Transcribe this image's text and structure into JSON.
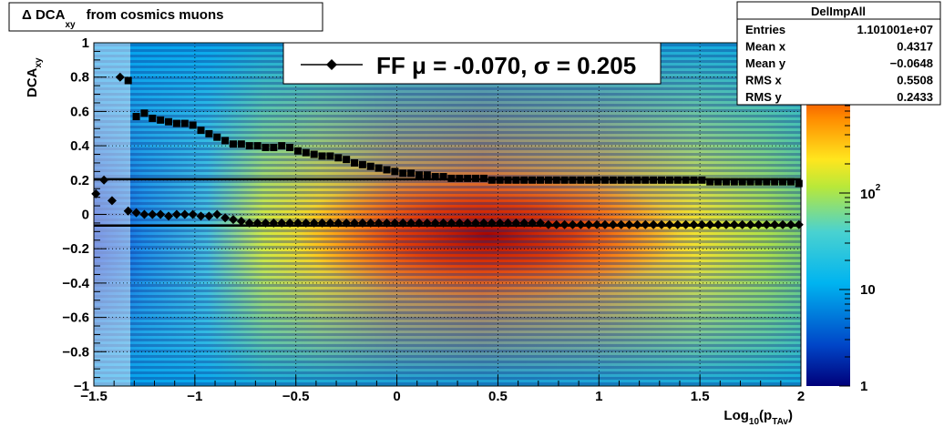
{
  "title": {
    "prefix": "Δ DCA",
    "sub": "xy",
    "suffix": "from cosmics muons"
  },
  "stats": {
    "name": "DelImpAll",
    "rows": [
      {
        "label": "Entries",
        "value": "1.101001e+07"
      },
      {
        "label": "Mean x",
        "value": "0.4317"
      },
      {
        "label": "Mean y",
        "value": "−0.0648"
      },
      {
        "label": "RMS x",
        "value": "0.5508"
      },
      {
        "label": "RMS y",
        "value": "0.2433"
      }
    ]
  },
  "legend": {
    "text": "FF μ = -0.070, σ =   0.205"
  },
  "chart_data": {
    "type": "heatmap",
    "xlabel": {
      "main": "Log",
      "sub1": "10",
      "mid": "(p",
      "sub2": "TAv",
      "end": ")"
    },
    "ylabel": {
      "main": "DCA",
      "sub": "xy"
    },
    "xlim": [
      -1.5,
      2
    ],
    "ylim": [
      -1,
      1
    ],
    "xticks": [
      "−1.5",
      "−1",
      "−0.5",
      "0",
      "0.5",
      "1",
      "1.5",
      "2"
    ],
    "yticks": [
      "−1",
      "−0.8",
      "−0.6",
      "−0.4",
      "−0.2",
      "0",
      "0.2",
      "0.4",
      "0.6",
      "0.8",
      "1"
    ],
    "grid": true,
    "colorbar": {
      "scale": "log",
      "ticks": [
        "1",
        "10",
        "10²"
      ]
    },
    "series": [
      {
        "marker": "square",
        "x": [
          -1.33,
          -1.29,
          -1.25,
          -1.21,
          -1.17,
          -1.13,
          -1.09,
          -1.05,
          -1.01,
          -0.97,
          -0.93,
          -0.89,
          -0.85,
          -0.81,
          -0.77,
          -0.73,
          -0.69,
          -0.65,
          -0.61,
          -0.57,
          -0.53,
          -0.49,
          -0.45,
          -0.41,
          -0.37,
          -0.33,
          -0.29,
          -0.25,
          -0.21,
          -0.17,
          -0.13,
          -0.09,
          -0.05,
          -0.01,
          0.03,
          0.07,
          0.11,
          0.15,
          0.19,
          0.23,
          0.27,
          0.31,
          0.35,
          0.39,
          0.43,
          0.47,
          0.51,
          0.55,
          0.59,
          0.63,
          0.67,
          0.71,
          0.75,
          0.79,
          0.83,
          0.87,
          0.91,
          0.95,
          0.99,
          1.03,
          1.07,
          1.11,
          1.15,
          1.19,
          1.23,
          1.27,
          1.31,
          1.35,
          1.39,
          1.43,
          1.47,
          1.51,
          1.55,
          1.59,
          1.63,
          1.67,
          1.71,
          1.75,
          1.79,
          1.83,
          1.87,
          1.91,
          1.95,
          1.99
        ],
        "y": [
          0.78,
          0.57,
          0.59,
          0.56,
          0.55,
          0.54,
          0.53,
          0.53,
          0.52,
          0.49,
          0.47,
          0.45,
          0.43,
          0.41,
          0.41,
          0.4,
          0.4,
          0.39,
          0.39,
          0.4,
          0.39,
          0.37,
          0.36,
          0.35,
          0.34,
          0.34,
          0.33,
          0.32,
          0.3,
          0.29,
          0.28,
          0.27,
          0.26,
          0.25,
          0.24,
          0.24,
          0.23,
          0.23,
          0.22,
          0.22,
          0.21,
          0.21,
          0.21,
          0.21,
          0.21,
          0.2,
          0.2,
          0.2,
          0.2,
          0.2,
          0.2,
          0.2,
          0.2,
          0.2,
          0.2,
          0.2,
          0.2,
          0.2,
          0.2,
          0.2,
          0.2,
          0.2,
          0.2,
          0.2,
          0.2,
          0.2,
          0.2,
          0.2,
          0.2,
          0.2,
          0.2,
          0.2,
          0.19,
          0.19,
          0.19,
          0.19,
          0.19,
          0.19,
          0.19,
          0.19,
          0.19,
          0.19,
          0.19,
          0.18
        ]
      },
      {
        "marker": "diamond",
        "x": [
          -1.49,
          -1.45,
          -1.41,
          -1.37,
          -1.33,
          -1.29,
          -1.25,
          -1.21,
          -1.17,
          -1.13,
          -1.09,
          -1.05,
          -1.01,
          -0.97,
          -0.93,
          -0.89,
          -0.85,
          -0.81,
          -0.77,
          -0.73,
          -0.69,
          -0.65,
          -0.61,
          -0.57,
          -0.53,
          -0.49,
          -0.45,
          -0.41,
          -0.37,
          -0.33,
          -0.29,
          -0.25,
          -0.21,
          -0.17,
          -0.13,
          -0.09,
          -0.05,
          -0.01,
          0.03,
          0.07,
          0.11,
          0.15,
          0.19,
          0.23,
          0.27,
          0.31,
          0.35,
          0.39,
          0.43,
          0.47,
          0.51,
          0.55,
          0.59,
          0.63,
          0.67,
          0.71,
          0.75,
          0.79,
          0.83,
          0.87,
          0.91,
          0.95,
          0.99,
          1.03,
          1.07,
          1.11,
          1.15,
          1.19,
          1.23,
          1.27,
          1.31,
          1.35,
          1.39,
          1.43,
          1.47,
          1.51,
          1.55,
          1.59,
          1.63,
          1.67,
          1.71,
          1.75,
          1.79,
          1.83,
          1.87,
          1.91,
          1.95,
          1.99
        ],
        "y": [
          0.12,
          0.2,
          0.08,
          0.8,
          0.02,
          0.01,
          0.0,
          0.0,
          0.0,
          -0.01,
          0.0,
          0.0,
          0.0,
          -0.01,
          -0.01,
          0.0,
          -0.02,
          -0.03,
          -0.04,
          -0.05,
          -0.05,
          -0.05,
          -0.05,
          -0.05,
          -0.05,
          -0.05,
          -0.05,
          -0.05,
          -0.05,
          -0.05,
          -0.05,
          -0.05,
          -0.05,
          -0.05,
          -0.05,
          -0.05,
          -0.05,
          -0.05,
          -0.05,
          -0.05,
          -0.05,
          -0.05,
          -0.05,
          -0.05,
          -0.05,
          -0.05,
          -0.05,
          -0.05,
          -0.05,
          -0.05,
          -0.05,
          -0.05,
          -0.05,
          -0.05,
          -0.05,
          -0.05,
          -0.06,
          -0.06,
          -0.06,
          -0.06,
          -0.06,
          -0.06,
          -0.06,
          -0.06,
          -0.06,
          -0.06,
          -0.06,
          -0.06,
          -0.06,
          -0.06,
          -0.06,
          -0.06,
          -0.06,
          -0.06,
          -0.06,
          -0.06,
          -0.06,
          -0.06,
          -0.06,
          -0.06,
          -0.06,
          -0.06,
          -0.06,
          -0.06,
          -0.06,
          -0.06,
          -0.06,
          -0.06
        ]
      }
    ],
    "hlines": [
      0.205,
      -0.065
    ]
  }
}
